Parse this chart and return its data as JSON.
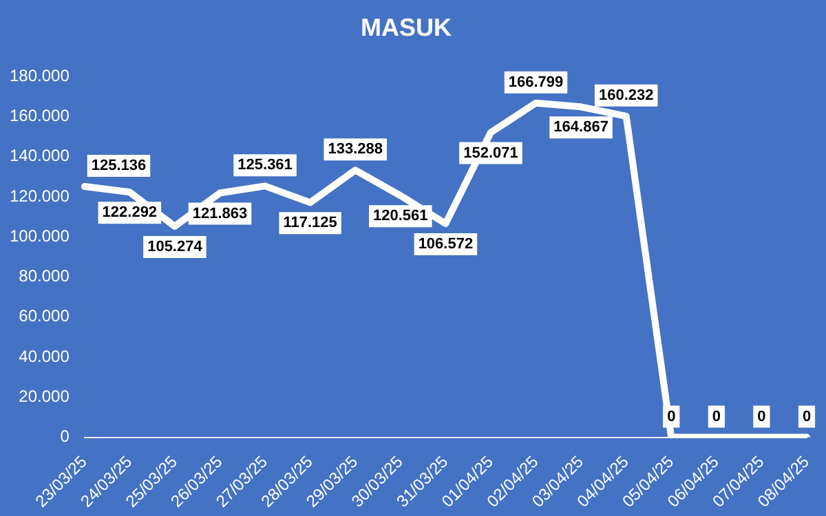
{
  "chart_data": {
    "type": "line",
    "title": "MASUK",
    "categories": [
      "23/03/25",
      "24/03/25",
      "25/03/25",
      "26/03/25",
      "27/03/25",
      "28/03/25",
      "29/03/25",
      "30/03/25",
      "31/03/25",
      "01/04/25",
      "02/04/25",
      "03/04/25",
      "04/04/25",
      "05/04/25",
      "06/04/25",
      "07/04/25",
      "08/04/25"
    ],
    "series": [
      {
        "color": "#ffffff",
        "values": [
          125136,
          122292,
          105274,
          121863,
          125361,
          117125,
          133288,
          120561,
          106572,
          152071,
          166799,
          164867,
          160232,
          0,
          0,
          0,
          0
        ],
        "value_labels": [
          "125.136",
          "122.292",
          "105.274",
          "121.863",
          "125.361",
          "117.125",
          "133.288",
          "120.561",
          "106.572",
          "152.071",
          "166.799",
          "164.867",
          "160.232",
          "0",
          "0",
          "0",
          "0"
        ]
      }
    ],
    "ylim": [
      0,
      180000
    ],
    "yticks": [
      {
        "value": 0,
        "label": "0"
      },
      {
        "value": 20000,
        "label": "20.000"
      },
      {
        "value": 40000,
        "label": "40.000"
      },
      {
        "value": 60000,
        "label": "60.000"
      },
      {
        "value": 80000,
        "label": "80.000"
      },
      {
        "value": 100000,
        "label": "100.000"
      },
      {
        "value": 120000,
        "label": "120.000"
      },
      {
        "value": 140000,
        "label": "140.000"
      },
      {
        "value": 160000,
        "label": "160.000"
      },
      {
        "value": 180000,
        "label": "180.000"
      }
    ],
    "grid": false,
    "legend": false,
    "marker": "none",
    "line_style": "solid"
  }
}
